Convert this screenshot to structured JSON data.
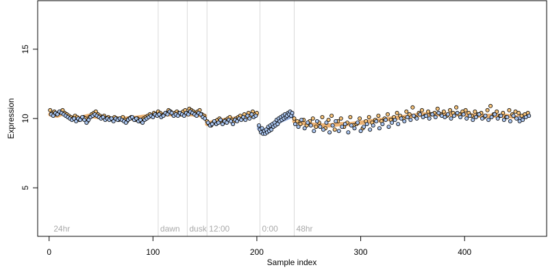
{
  "chart_data": {
    "type": "scatter",
    "title": "",
    "xlabel": "Sample index",
    "ylabel": "Expression",
    "xlim": [
      -11,
      479
    ],
    "ylim": [
      1.5,
      18.5
    ],
    "x_ticks": [
      0,
      100,
      200,
      300,
      400
    ],
    "y_ticks": [
      5,
      10,
      15
    ],
    "grid": false,
    "legend": "none",
    "colors": {
      "point_outline": "#000000",
      "fill_orange": "#f5c27a",
      "fill_blue": "#a9c4ee",
      "band_orange": "#e8a55c",
      "band_blue": "#7f9fd9",
      "annotation_line": "#d9d9d9",
      "annotation_text": "#a9a9a9"
    },
    "vlines": [
      {
        "x": 105,
        "label": "dawn"
      },
      {
        "x": 133,
        "label": "dusk"
      },
      {
        "x": 152,
        "label": "12:00"
      },
      {
        "x": 203,
        "label": "0:00"
      },
      {
        "x": 236,
        "label": "48hr"
      }
    ],
    "extra_labels": [
      {
        "x": 3,
        "label": "24hr"
      }
    ],
    "bands": [
      {
        "color": "orange",
        "points": [
          [
            1,
            10.3
          ],
          [
            8,
            10.2
          ],
          [
            14,
            10.4
          ],
          [
            20,
            10.1
          ],
          [
            28,
            10.0
          ],
          [
            38,
            10.2
          ],
          [
            48,
            10.1
          ],
          [
            58,
            10.0
          ],
          [
            68,
            10.0
          ],
          [
            78,
            10.0
          ],
          [
            88,
            10.1
          ],
          [
            98,
            10.2
          ],
          [
            108,
            10.3
          ],
          [
            118,
            10.3
          ],
          [
            128,
            10.3
          ],
          [
            138,
            10.3
          ],
          [
            150,
            10.2
          ]
        ]
      },
      {
        "color": "orange",
        "points": [
          [
            152,
            9.6
          ],
          [
            160,
            9.8
          ],
          [
            170,
            9.9
          ],
          [
            180,
            10.0
          ],
          [
            190,
            10.2
          ],
          [
            200,
            10.3
          ]
        ]
      },
      {
        "color": "blue",
        "points": [
          [
            202,
            9.3
          ],
          [
            206,
            9.0
          ],
          [
            210,
            9.2
          ],
          [
            216,
            9.5
          ],
          [
            222,
            9.8
          ],
          [
            228,
            10.0
          ],
          [
            234,
            10.2
          ]
        ]
      },
      {
        "color": "orange",
        "points": [
          [
            236,
            9.8
          ],
          [
            242,
            9.7
          ],
          [
            250,
            9.6
          ],
          [
            260,
            9.5
          ],
          [
            270,
            9.5
          ],
          [
            280,
            9.6
          ],
          [
            290,
            9.6
          ],
          [
            300,
            9.7
          ],
          [
            310,
            9.8
          ],
          [
            320,
            9.9
          ],
          [
            330,
            10.0
          ],
          [
            340,
            10.1
          ],
          [
            350,
            10.2
          ],
          [
            360,
            10.3
          ],
          [
            370,
            10.3
          ],
          [
            380,
            10.3
          ],
          [
            390,
            10.3
          ],
          [
            400,
            10.3
          ],
          [
            410,
            10.2
          ],
          [
            420,
            10.2
          ],
          [
            430,
            10.2
          ],
          [
            440,
            10.2
          ],
          [
            450,
            10.1
          ],
          [
            458,
            10.2
          ]
        ]
      },
      {
        "color": "blue",
        "points": [
          [
            452,
            10.0
          ],
          [
            456,
            10.1
          ],
          [
            460,
            10.3
          ]
        ]
      }
    ],
    "series": [
      {
        "color": "orange",
        "x": [
          1,
          3,
          5,
          7,
          9,
          11,
          13,
          15,
          17,
          19,
          21,
          23,
          25,
          27,
          29,
          31,
          33,
          35,
          37,
          39,
          41,
          43,
          45,
          47,
          49,
          51,
          53,
          55,
          57,
          59,
          61,
          63,
          65,
          67,
          69,
          71,
          73,
          75,
          77,
          79,
          81,
          83,
          85,
          87,
          89,
          91,
          93,
          95,
          97,
          99,
          101,
          103,
          105,
          107,
          109,
          111,
          113,
          115,
          117,
          119,
          121,
          123,
          125,
          127,
          129,
          131,
          133,
          135,
          137,
          139,
          141,
          143,
          145,
          147,
          149
        ],
        "y": [
          10.6,
          10.4,
          10.5,
          10.3,
          10.4,
          10.5,
          10.6,
          10.4,
          10.3,
          10.2,
          10.1,
          10.0,
          10.2,
          10.1,
          9.9,
          10.0,
          10.1,
          10.0,
          9.8,
          10.1,
          10.3,
          10.4,
          10.5,
          10.3,
          10.2,
          10.1,
          10.2,
          10.0,
          10.1,
          10.0,
          9.9,
          10.1,
          10.0,
          9.9,
          10.0,
          10.1,
          9.9,
          9.8,
          10.0,
          10.1,
          10.0,
          9.9,
          10.0,
          9.8,
          9.9,
          10.0,
          10.1,
          10.2,
          10.3,
          10.2,
          10.4,
          10.3,
          10.5,
          10.4,
          10.2,
          10.3,
          10.4,
          10.6,
          10.5,
          10.3,
          10.4,
          10.5,
          10.4,
          10.3,
          10.5,
          10.6,
          10.4,
          10.7,
          10.6,
          10.5,
          10.4,
          10.5,
          10.6,
          10.3,
          10.2
        ]
      },
      {
        "color": "blue",
        "x": [
          2,
          4,
          6,
          8,
          10,
          12,
          14,
          16,
          18,
          20,
          22,
          24,
          26,
          28,
          30,
          32,
          34,
          36,
          38,
          40,
          42,
          44,
          46,
          48,
          50,
          52,
          54,
          56,
          58,
          60,
          62,
          64,
          66,
          68,
          70,
          72,
          74,
          76,
          78,
          80,
          82,
          84,
          86,
          88,
          90,
          92,
          94,
          96,
          98,
          100,
          102,
          104,
          106,
          108,
          110,
          112,
          114,
          116,
          118,
          120,
          122,
          124,
          126,
          128,
          130,
          132,
          134,
          136,
          138,
          140,
          142,
          144,
          146,
          148,
          150
        ],
        "y": [
          10.3,
          10.2,
          10.4,
          10.3,
          10.5,
          10.4,
          10.3,
          10.2,
          10.1,
          10.0,
          9.9,
          10.0,
          9.8,
          10.0,
          9.9,
          10.1,
          9.9,
          9.7,
          9.9,
          10.1,
          10.2,
          10.3,
          10.2,
          10.1,
          10.0,
          10.1,
          9.9,
          10.0,
          9.9,
          10.0,
          9.8,
          10.0,
          9.9,
          10.0,
          9.9,
          9.8,
          9.7,
          9.9,
          10.0,
          10.1,
          9.9,
          10.0,
          9.8,
          9.9,
          9.7,
          9.9,
          10.0,
          10.1,
          10.2,
          10.1,
          10.3,
          10.2,
          10.3,
          10.1,
          10.2,
          10.4,
          10.3,
          10.5,
          10.4,
          10.2,
          10.3,
          10.2,
          10.4,
          10.3,
          10.2,
          10.4,
          10.3,
          10.5,
          10.4,
          10.3,
          10.2,
          10.4,
          10.3,
          10.1,
          10.0
        ]
      },
      {
        "color": "orange",
        "x": [
          152,
          154,
          156,
          158,
          160,
          162,
          164,
          166,
          168,
          170,
          172,
          174,
          176,
          178,
          180,
          182,
          184,
          186,
          188,
          190,
          192,
          194,
          196,
          198,
          200
        ],
        "y": [
          9.8,
          9.6,
          9.5,
          9.7,
          9.8,
          9.9,
          10.0,
          9.8,
          9.7,
          9.9,
          10.0,
          10.1,
          9.9,
          9.8,
          10.0,
          10.1,
          10.2,
          10.0,
          10.3,
          10.1,
          10.4,
          10.2,
          10.5,
          10.3,
          10.4
        ]
      },
      {
        "color": "blue",
        "x": [
          153,
          155,
          157,
          159,
          161,
          163,
          165,
          167,
          169,
          171,
          173,
          175,
          177,
          179,
          181,
          183,
          185,
          187,
          189,
          191,
          193,
          195,
          197,
          199
        ],
        "y": [
          9.7,
          9.5,
          9.6,
          9.8,
          9.6,
          9.7,
          9.9,
          9.6,
          9.8,
          9.7,
          9.9,
          9.8,
          9.6,
          9.9,
          9.8,
          10.0,
          9.9,
          10.1,
          9.9,
          10.2,
          10.0,
          10.3,
          10.1,
          10.2
        ]
      },
      {
        "color": "blue",
        "x": [
          202,
          203,
          204,
          205,
          206,
          207,
          208,
          209,
          210,
          211,
          212,
          213,
          214,
          215,
          216,
          217,
          218,
          219,
          220,
          221,
          222,
          223,
          224,
          225,
          226,
          227,
          228,
          229,
          230,
          231,
          232,
          233,
          234
        ],
        "y": [
          9.5,
          9.2,
          9.0,
          9.3,
          8.9,
          9.1,
          8.9,
          9.2,
          9.0,
          9.4,
          9.1,
          9.5,
          9.2,
          9.6,
          9.4,
          9.7,
          9.5,
          9.9,
          9.6,
          10.0,
          9.8,
          10.1,
          9.9,
          10.2,
          10.0,
          10.3,
          10.1,
          10.2,
          10.4,
          10.3,
          10.5,
          10.2,
          10.4
        ]
      },
      {
        "color": "orange",
        "x": [
          236,
          239,
          242,
          245,
          248,
          251,
          254,
          257,
          260,
          263,
          266,
          269,
          272,
          275,
          278,
          281,
          284,
          287,
          290,
          293,
          296,
          299,
          302,
          305,
          308,
          311,
          314,
          317,
          320,
          323,
          326,
          329,
          332,
          335,
          338,
          341,
          344,
          347,
          350,
          353,
          356,
          359,
          362,
          365,
          368,
          371,
          374,
          377,
          380,
          383,
          386,
          389,
          392,
          395,
          398,
          401,
          404,
          407,
          410,
          413,
          416,
          419,
          422,
          425,
          428,
          431,
          434,
          437,
          440,
          443,
          446,
          449,
          452,
          455,
          458,
          461
        ],
        "y": [
          10.0,
          9.8,
          9.6,
          9.9,
          9.5,
          9.8,
          10.0,
          9.4,
          9.7,
          10.1,
          9.3,
          9.9,
          10.2,
          9.2,
          9.8,
          10.0,
          9.4,
          9.7,
          10.1,
          9.5,
          9.6,
          10.0,
          9.3,
          9.8,
          10.1,
          9.7,
          9.9,
          10.2,
          9.8,
          10.0,
          10.3,
          9.9,
          10.1,
          10.4,
          10.2,
          10.0,
          10.5,
          10.3,
          10.8,
          10.1,
          10.4,
          10.6,
          10.2,
          10.5,
          10.3,
          10.4,
          10.7,
          10.3,
          10.5,
          10.2,
          10.6,
          10.4,
          10.8,
          10.3,
          10.5,
          10.6,
          10.4,
          10.2,
          10.5,
          10.3,
          10.4,
          10.1,
          10.6,
          10.9,
          10.3,
          10.5,
          10.2,
          10.4,
          10.1,
          10.6,
          10.3,
          10.5,
          10.4,
          10.2,
          10.3,
          10.4
        ]
      },
      {
        "color": "blue",
        "x": [
          237,
          240,
          243,
          246,
          249,
          252,
          255,
          258,
          261,
          264,
          267,
          270,
          273,
          276,
          279,
          282,
          285,
          288,
          291,
          294,
          297,
          300,
          303,
          306,
          309,
          312,
          315,
          318,
          321,
          324,
          327,
          330,
          333,
          336,
          339,
          342,
          345,
          348,
          351,
          354,
          357,
          360,
          363,
          366,
          369,
          372,
          375,
          378,
          381,
          384,
          387,
          390,
          393,
          396,
          399,
          402,
          405,
          408,
          411,
          414,
          417,
          420,
          423,
          426,
          429,
          432,
          435,
          438,
          441,
          444,
          447,
          450,
          453,
          456,
          459,
          462
        ],
        "y": [
          9.6,
          9.4,
          9.9,
          9.3,
          9.7,
          9.5,
          9.1,
          9.8,
          9.4,
          9.2,
          9.7,
          9.0,
          9.5,
          9.8,
          9.1,
          9.4,
          9.6,
          9.0,
          9.5,
          9.3,
          9.7,
          9.1,
          9.4,
          9.6,
          9.2,
          9.5,
          9.8,
          9.3,
          9.6,
          9.9,
          9.4,
          9.7,
          9.9,
          9.6,
          10.0,
          9.8,
          10.1,
          9.9,
          10.2,
          10.0,
          10.3,
          10.1,
          10.2,
          10.0,
          10.3,
          10.1,
          10.4,
          10.2,
          10.1,
          10.3,
          10.0,
          10.2,
          10.4,
          10.1,
          10.3,
          10.0,
          10.2,
          9.9,
          10.1,
          10.3,
          10.0,
          10.2,
          9.9,
          10.1,
          10.3,
          10.0,
          10.2,
          9.9,
          10.1,
          9.8,
          10.2,
          10.0,
          9.8,
          9.9,
          10.1,
          10.2
        ]
      }
    ]
  }
}
